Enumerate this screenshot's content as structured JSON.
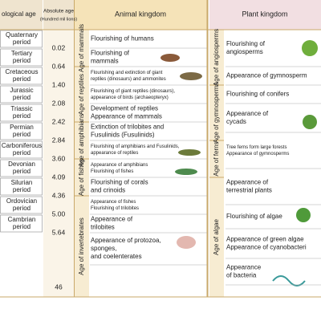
{
  "header": {
    "geological_age": "ological age",
    "absolute_age": "Absolute age",
    "absolute_age_unit": "(Hundred mil lions)",
    "animal_kingdom": "Animal kingdom",
    "plant_kingdom": "Plant kingdom"
  },
  "periods": [
    [
      "Quaternary",
      "period"
    ],
    [
      "Tertiary",
      "period"
    ],
    [
      "Cretaceous",
      "period"
    ],
    [
      "Jurassic",
      "period"
    ],
    [
      "Triassic",
      "period"
    ],
    [
      "Permian",
      "period"
    ],
    [
      "Carboniferous",
      "period"
    ],
    [
      "Devonian",
      "period"
    ],
    [
      "Silurian",
      "period"
    ],
    [
      "Ordovician",
      "period"
    ],
    [
      "Cambrian",
      "period"
    ]
  ],
  "absolute_ages": [
    "0.02",
    "0.64",
    "1.40",
    "2.08",
    "2.42",
    "2.84",
    "3.60",
    "4.09",
    "4.36",
    "5.00",
    "5.64",
    "46"
  ],
  "animal_ages": [
    "Age of mammals",
    "Age of reptiles",
    "Age of amphibians",
    "Age of fishes",
    "Age of invertebrates"
  ],
  "animal_events": [
    [
      "Flourishing of humans"
    ],
    [
      "Flourishing of",
      "mammals"
    ],
    [
      "Flourishing and extinction of giant",
      "reptiles (dinosaurs) and ammonites"
    ],
    [
      "Flourishing of giant reptiles (dinosaurs),",
      "appearance of birds (archaeopteryx)"
    ],
    [
      "Development of reptiles",
      "Appearance of mammals"
    ],
    [
      "Extinction of trilobites and",
      "Fusulinids (Fusulinids)"
    ],
    [
      "Flourishing of amphibians and Fusulinids,",
      "appearance of reptiles"
    ],
    [
      "Appearance of amphibians",
      "Flourishing of fishes"
    ],
    [
      "Flourishing of corals",
      "and crinoids"
    ],
    [
      "Appearance of fishes",
      "Flourishing of trilobites"
    ],
    [
      "Appearance of",
      "trilobites"
    ],
    [
      "Appearance of protozoa,",
      "sponges,",
      "and coelenterates"
    ]
  ],
  "plant_ages": [
    "Age of angiosperms",
    "Age of gymnosperms",
    "Age of ferns",
    "Age of algae"
  ],
  "plant_events": [
    [
      "Flourishing of",
      "angiosperms"
    ],
    [
      "Appearance of gymnosperm"
    ],
    [
      "Flourishing of conifers"
    ],
    [
      "Appearance of",
      "cycads"
    ],
    [
      "Tree ferns form large forests",
      "Appearance of gymnosperms"
    ],
    [
      "Appearance of",
      "terrestrial plants"
    ],
    [
      "Flourishing of algae"
    ],
    [
      "Appearance of green algae",
      "Appearance of cyanobacteri"
    ],
    [
      "Appearance",
      "of bacteria"
    ]
  ]
}
